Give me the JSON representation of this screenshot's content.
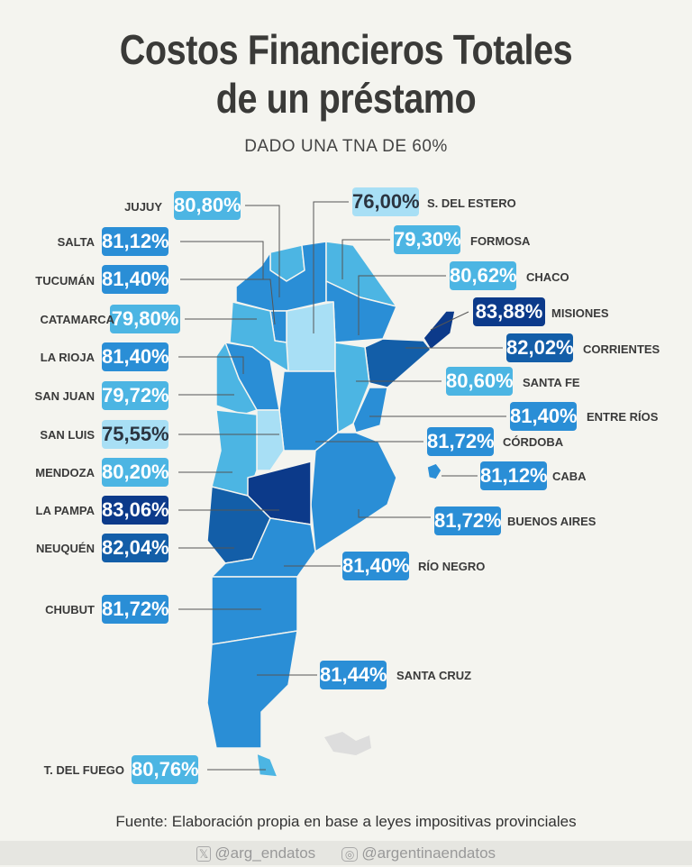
{
  "title": [
    "Costos Financieros Totales",
    "de un préstamo"
  ],
  "subtitle": "DADO UNA TNA DE 60%",
  "colors": {
    "lowest": "#a8dff5",
    "low": "#4cb5e3",
    "mid": "#2a8ed6",
    "high": "#135ea8",
    "highest": "#0c3a8a"
  },
  "provinces": {
    "jujuy": {
      "name": "JUJUY",
      "value": "80,80%"
    },
    "salta": {
      "name": "SALTA",
      "value": "81,12%"
    },
    "tucuman": {
      "name": "TUCUMÁN",
      "value": "81,40%"
    },
    "catamarca": {
      "name": "CATAMARCA",
      "value": "79,80%"
    },
    "la_rioja": {
      "name": "LA RIOJA",
      "value": "81,40%"
    },
    "san_juan": {
      "name": "SAN JUAN",
      "value": "79,72%"
    },
    "san_luis": {
      "name": "SAN LUIS",
      "value": "75,55%"
    },
    "mendoza": {
      "name": "MENDOZA",
      "value": "80,20%"
    },
    "la_pampa": {
      "name": "LA PAMPA",
      "value": "83,06%"
    },
    "neuquen": {
      "name": "NEUQUÉN",
      "value": "82,04%"
    },
    "chubut": {
      "name": "CHUBUT",
      "value": "81,72%"
    },
    "tierra_del_fuego": {
      "name": "T. DEL FUEGO",
      "value": "80,76%"
    },
    "santiago_del_estero": {
      "name": "S. DEL ESTERO",
      "value": "76,00%"
    },
    "formosa": {
      "name": "FORMOSA",
      "value": "79,30%"
    },
    "chaco": {
      "name": "CHACO",
      "value": "80,62%"
    },
    "misiones": {
      "name": "MISIONES",
      "value": "83,88%"
    },
    "corrientes": {
      "name": "CORRIENTES",
      "value": "82,02%"
    },
    "santa_fe": {
      "name": "SANTA FE",
      "value": "80,60%"
    },
    "entre_rios": {
      "name": "ENTRE RÍOS",
      "value": "81,40%"
    },
    "cordoba": {
      "name": "CÓRDOBA",
      "value": "81,72%"
    },
    "caba": {
      "name": "CABA",
      "value": "81,12%"
    },
    "buenos_aires": {
      "name": "BUENOS AIRES",
      "value": "81,72%"
    },
    "rio_negro": {
      "name": "RÍO NEGRO",
      "value": "81,40%"
    },
    "santa_cruz": {
      "name": "SANTA CRUZ",
      "value": "81,44%"
    }
  },
  "source": "Fuente: Elaboración propia en base a leyes impositivas provinciales",
  "footer": {
    "twitter_icon": "x-logo-icon",
    "twitter": "@arg_endatos",
    "instagram_icon": "instagram-icon",
    "instagram": "@argentinaendatos"
  }
}
